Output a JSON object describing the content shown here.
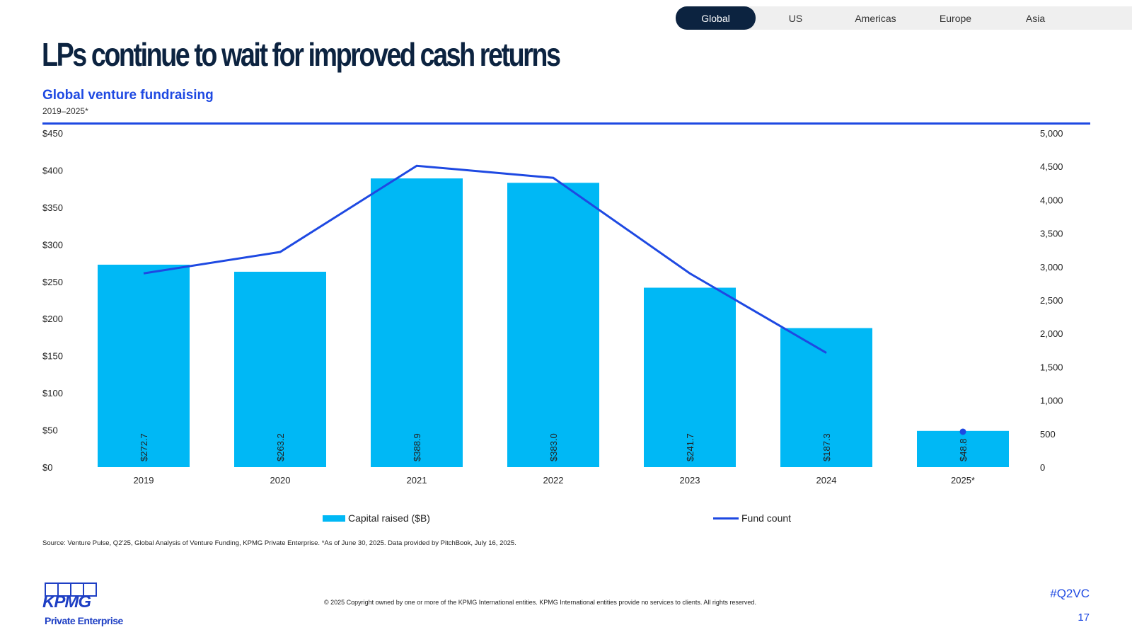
{
  "tabs": [
    {
      "label": "Global",
      "active": true
    },
    {
      "label": "US"
    },
    {
      "label": "Americas"
    },
    {
      "label": "Europe"
    },
    {
      "label": "Asia"
    }
  ],
  "title": "LPs continue to wait for improved cash returns",
  "subtitle": "Global venture fundraising",
  "range": "2019–2025*",
  "source": "Source: Venture Pulse, Q2'25, Global Analysis of Venture Funding, KPMG Private Enterprise. *As of June 30, 2025. Data provided by PitchBook, July 16, 2025.",
  "copyright": "© 2025 Copyright owned by one or more of the KPMG International entities. KPMG International entities provide no services to clients. All rights reserved.",
  "hashtag": "#Q2VC",
  "page_number": "17",
  "logo": {
    "brand": "KPMG",
    "sub": "Private Enterprise"
  },
  "colors": {
    "bar": "#00b8f5",
    "line": "#1e49e2",
    "navy": "#0c2340"
  },
  "chart_data": {
    "type": "bar",
    "categories": [
      "2019",
      "2020",
      "2021",
      "2022",
      "2023",
      "2024",
      "2025*"
    ],
    "series": [
      {
        "name": "Capital raised ($B)",
        "type": "bar",
        "axis": "left",
        "values": [
          272.7,
          263.2,
          388.9,
          383.0,
          241.7,
          187.3,
          48.8
        ],
        "labels": [
          "$272.7",
          "$263.2",
          "$388.9",
          "$383.0",
          "$241.7",
          "$187.3",
          "$48.8"
        ]
      },
      {
        "name": "Fund count",
        "type": "line",
        "axis": "right",
        "values": [
          2900,
          3220,
          4510,
          4330,
          2900,
          1710,
          530
        ]
      }
    ],
    "left_axis": {
      "range": [
        0,
        450
      ],
      "ticks": [
        "$0",
        "$50",
        "$100",
        "$150",
        "$200",
        "$250",
        "$300",
        "$350",
        "$400",
        "$450"
      ]
    },
    "right_axis": {
      "range": [
        0,
        5000
      ],
      "ticks": [
        "0",
        "500",
        "1,000",
        "1,500",
        "2,000",
        "2,500",
        "3,000",
        "3,500",
        "4,000",
        "4,500",
        "5,000"
      ]
    },
    "legend": "bottom"
  }
}
